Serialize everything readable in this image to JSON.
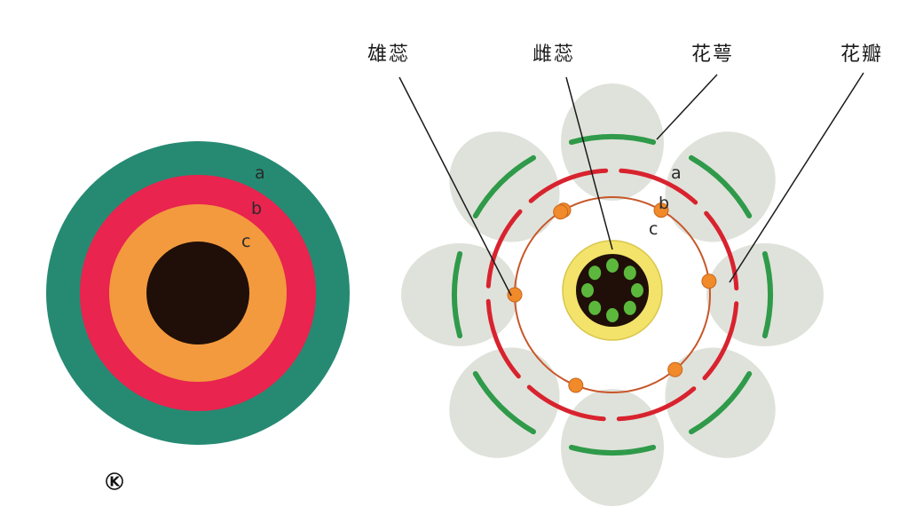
{
  "colors": {
    "sepal": "#268a73",
    "petal": "#e8244f",
    "stamen": "#f39a3e",
    "carpel": "#1f0f08",
    "sepal_arc": "#2f9a4a",
    "petal_arc": "#d8232f",
    "stamen_ring": "#c7572a",
    "anther": "#f08a2a",
    "pistil_ring": "#f3e36a",
    "ovule": "#5cb83c",
    "lobe": "#d9ddd3"
  },
  "left_diagram": {
    "ring_labels": [
      "a",
      "b",
      "c"
    ]
  },
  "right_diagram": {
    "labels": [
      "雄蕊",
      "雌蕊",
      "花萼",
      "花瓣"
    ],
    "ring_letters": [
      "a",
      "b",
      "c"
    ]
  },
  "mark": "K"
}
